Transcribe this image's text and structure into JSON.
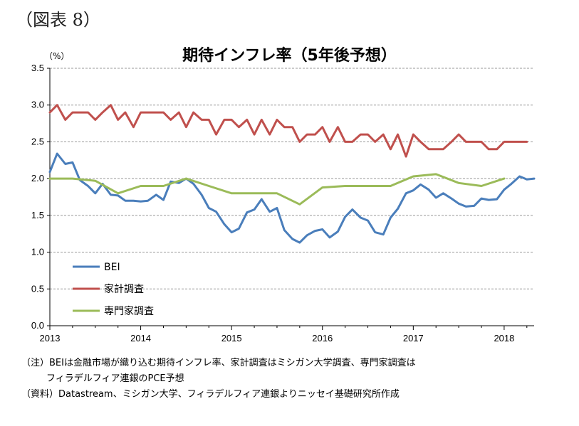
{
  "figure_label": "（図表 8）",
  "notes": {
    "note_line1": "（注）BEIは金融市場が織り込む期待インフレ率、家計調査はミシガン大学調査、専門家調査は",
    "note_line2": "フィラデルフィア連銀のPCE予想",
    "source": "（資料）Datastream、ミシガン大学、フィラデルフィア連銀よりニッセイ基礎研究所作成"
  },
  "chart_data": {
    "type": "line",
    "title": "期待インフレ率（5年後予想）",
    "ylabel": "（%）",
    "xlabel": "",
    "ylim": [
      0,
      3.5
    ],
    "xlim": [
      2013.0,
      2018.33
    ],
    "y_ticks": [
      "0.0",
      "0.5",
      "1.0",
      "1.5",
      "2.0",
      "2.5",
      "3.0",
      "3.5"
    ],
    "x_ticks": [
      "2013",
      "2014",
      "2015",
      "2016",
      "2017",
      "2018"
    ],
    "grid": "horizontal",
    "legend_position": "bottom-left",
    "series": [
      {
        "name": "BEI",
        "color": "#4a7ebb",
        "x": [
          2013.0,
          2013.08,
          2013.17,
          2013.25,
          2013.33,
          2013.42,
          2013.5,
          2013.58,
          2013.67,
          2013.75,
          2013.83,
          2013.92,
          2014.0,
          2014.08,
          2014.17,
          2014.25,
          2014.33,
          2014.42,
          2014.5,
          2014.58,
          2014.67,
          2014.75,
          2014.83,
          2014.92,
          2015.0,
          2015.08,
          2015.17,
          2015.25,
          2015.33,
          2015.42,
          2015.5,
          2015.58,
          2015.67,
          2015.75,
          2015.83,
          2015.92,
          2016.0,
          2016.08,
          2016.17,
          2016.25,
          2016.33,
          2016.42,
          2016.5,
          2016.58,
          2016.67,
          2016.75,
          2016.83,
          2016.92,
          2017.0,
          2017.08,
          2017.17,
          2017.25,
          2017.33,
          2017.42,
          2017.5,
          2017.58,
          2017.67,
          2017.75,
          2017.83,
          2017.92,
          2018.0,
          2018.08,
          2018.17,
          2018.25,
          2018.33
        ],
        "values": [
          2.09,
          2.34,
          2.2,
          2.22,
          1.98,
          1.9,
          1.8,
          1.93,
          1.78,
          1.77,
          1.7,
          1.7,
          1.69,
          1.7,
          1.78,
          1.71,
          1.96,
          1.94,
          2.0,
          1.93,
          1.78,
          1.6,
          1.55,
          1.38,
          1.27,
          1.32,
          1.54,
          1.58,
          1.72,
          1.55,
          1.6,
          1.3,
          1.18,
          1.13,
          1.23,
          1.29,
          1.31,
          1.2,
          1.28,
          1.48,
          1.58,
          1.47,
          1.43,
          1.27,
          1.24,
          1.47,
          1.59,
          1.8,
          1.84,
          1.92,
          1.85,
          1.74,
          1.8,
          1.73,
          1.66,
          1.62,
          1.63,
          1.73,
          1.71,
          1.72,
          1.85,
          1.93,
          2.03,
          1.99,
          2.0
        ]
      },
      {
        "name": "家計調査",
        "color": "#c0504d",
        "x": [
          2013.0,
          2013.08,
          2013.17,
          2013.25,
          2013.33,
          2013.42,
          2013.5,
          2013.58,
          2013.67,
          2013.75,
          2013.83,
          2013.92,
          2014.0,
          2014.08,
          2014.17,
          2014.25,
          2014.33,
          2014.42,
          2014.5,
          2014.58,
          2014.67,
          2014.75,
          2014.83,
          2014.92,
          2015.0,
          2015.08,
          2015.17,
          2015.25,
          2015.33,
          2015.42,
          2015.5,
          2015.58,
          2015.67,
          2015.75,
          2015.83,
          2015.92,
          2016.0,
          2016.08,
          2016.17,
          2016.25,
          2016.33,
          2016.42,
          2016.5,
          2016.58,
          2016.67,
          2016.75,
          2016.83,
          2016.92,
          2017.0,
          2017.08,
          2017.17,
          2017.25,
          2017.33,
          2017.42,
          2017.5,
          2017.58,
          2017.67,
          2017.75,
          2017.83,
          2017.92,
          2018.0,
          2018.08,
          2018.17,
          2018.25
        ],
        "values": [
          2.9,
          3.0,
          2.8,
          2.9,
          2.9,
          2.9,
          2.8,
          2.9,
          3.0,
          2.8,
          2.9,
          2.7,
          2.9,
          2.9,
          2.9,
          2.9,
          2.8,
          2.9,
          2.7,
          2.9,
          2.8,
          2.8,
          2.6,
          2.8,
          2.8,
          2.7,
          2.8,
          2.6,
          2.8,
          2.6,
          2.8,
          2.7,
          2.7,
          2.5,
          2.6,
          2.6,
          2.7,
          2.5,
          2.7,
          2.5,
          2.5,
          2.6,
          2.6,
          2.5,
          2.6,
          2.4,
          2.6,
          2.3,
          2.6,
          2.5,
          2.4,
          2.4,
          2.4,
          2.5,
          2.6,
          2.5,
          2.5,
          2.5,
          2.4,
          2.4,
          2.5,
          2.5,
          2.5,
          2.5
        ]
      },
      {
        "name": "専門家調査",
        "color": "#9bbb59",
        "x": [
          2013.0,
          2013.25,
          2013.5,
          2013.75,
          2014.0,
          2014.25,
          2014.5,
          2014.75,
          2015.0,
          2015.25,
          2015.5,
          2015.75,
          2016.0,
          2016.25,
          2016.5,
          2016.75,
          2017.0,
          2017.25,
          2017.5,
          2017.75,
          2018.0
        ],
        "values": [
          2.0,
          2.0,
          1.97,
          1.8,
          1.9,
          1.9,
          2.0,
          1.9,
          1.8,
          1.8,
          1.8,
          1.65,
          1.88,
          1.9,
          1.9,
          1.9,
          2.03,
          2.06,
          1.94,
          1.9,
          2.0
        ]
      }
    ]
  }
}
